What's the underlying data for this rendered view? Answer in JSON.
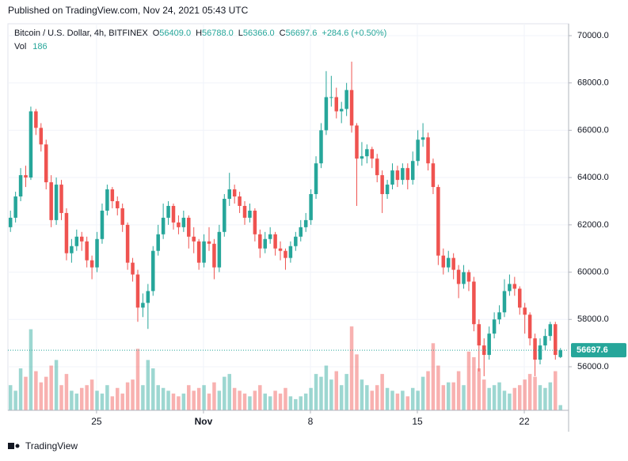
{
  "page": {
    "published": "Published on TradingView.com, Nov 24, 2021 05:43 UTC",
    "logo": "TradingView"
  },
  "chart_data": {
    "type": "candlestick",
    "legend": {
      "symbol": "Bitcoin / U.S. Dollar, 4h, BITFINEX",
      "open_label": "O",
      "open": "56409.0",
      "high_label": "H",
      "high": "56788.0",
      "low_label": "L",
      "low": "56366.0",
      "close_label": "C",
      "close": "56697.6",
      "change": "+284.6 (+0.50%)",
      "volume_label": "Vol"
    },
    "up_color": "#26a69a",
    "down_color": "#ef5350",
    "ylim": [
      54158,
      70502
    ],
    "yticks": [
      {
        "value": 56000,
        "label": "56000.0"
      },
      {
        "value": 58000,
        "label": "58000.0"
      },
      {
        "value": 60000,
        "label": "60000.0"
      },
      {
        "value": 62000,
        "label": "62000.0"
      },
      {
        "value": 64000,
        "label": "64000.0"
      },
      {
        "value": 66000,
        "label": "66000.0"
      },
      {
        "value": 68000,
        "label": "68000.0"
      },
      {
        "value": 70000,
        "label": "70000.0"
      }
    ],
    "xlim": [
      -0.5,
      109.6
    ],
    "xticks": [
      {
        "value": 16.9,
        "label": "25"
      },
      {
        "value": 37.9,
        "label": "Nov"
      },
      {
        "value": 58.9,
        "label": "8"
      },
      {
        "value": 79.9,
        "label": "15"
      },
      {
        "value": 100.9,
        "label": "22"
      }
    ],
    "grid": true,
    "last_price": 56697.6,
    "vol_ylim": [
      0,
      3400
    ],
    "ohlc": [
      [
        61900,
        62600,
        61700,
        62300
      ],
      [
        62300,
        63400,
        62100,
        63200
      ],
      [
        63200,
        64400,
        63000,
        64100
      ],
      [
        64100,
        64500,
        63600,
        64000
      ],
      [
        64000,
        67000,
        63900,
        66800
      ],
      [
        66800,
        66900,
        65800,
        66100
      ],
      [
        66100,
        66300,
        65100,
        65400
      ],
      [
        65400,
        65600,
        63500,
        63800
      ],
      [
        63800,
        64100,
        61900,
        62200
      ],
      [
        62200,
        64000,
        62000,
        63700
      ],
      [
        63700,
        63900,
        62200,
        62500
      ],
      [
        62500,
        62700,
        60500,
        60800
      ],
      [
        60800,
        61400,
        60400,
        61100
      ],
      [
        61100,
        61800,
        60900,
        61500
      ],
      [
        61500,
        61700,
        60900,
        61300
      ],
      [
        61300,
        61500,
        60200,
        60500
      ],
      [
        60500,
        60700,
        59700,
        60200
      ],
      [
        60200,
        61700,
        60000,
        61400
      ],
      [
        61400,
        62900,
        61200,
        62600
      ],
      [
        62600,
        63700,
        62400,
        63500
      ],
      [
        63500,
        63600,
        62700,
        63000
      ],
      [
        63000,
        63200,
        62400,
        62700
      ],
      [
        62700,
        62900,
        61700,
        62000
      ],
      [
        62000,
        62100,
        60100,
        60400
      ],
      [
        60400,
        60600,
        59600,
        59900
      ],
      [
        59900,
        60100,
        57900,
        58500
      ],
      [
        58500,
        59100,
        58100,
        58700
      ],
      [
        58700,
        59500,
        57600,
        59200
      ],
      [
        59200,
        61100,
        59000,
        60900
      ],
      [
        60900,
        62000,
        60700,
        61600
      ],
      [
        61600,
        62900,
        61400,
        62300
      ],
      [
        62300,
        63000,
        62000,
        62800
      ],
      [
        62800,
        62900,
        61800,
        62100
      ],
      [
        62100,
        62400,
        61600,
        61900
      ],
      [
        61900,
        62600,
        61700,
        62300
      ],
      [
        62300,
        62400,
        61000,
        61500
      ],
      [
        61500,
        61900,
        60800,
        61300
      ],
      [
        61300,
        61400,
        60100,
        60400
      ],
      [
        60400,
        61600,
        60200,
        61300
      ],
      [
        61300,
        61900,
        60900,
        61200
      ],
      [
        61200,
        61400,
        59700,
        60200
      ],
      [
        60200,
        62000,
        60000,
        61700
      ],
      [
        61700,
        63300,
        61500,
        63100
      ],
      [
        63100,
        64200,
        62800,
        63500
      ],
      [
        63500,
        63700,
        62900,
        63200
      ],
      [
        63200,
        63400,
        62500,
        62800
      ],
      [
        62800,
        63000,
        62000,
        62300
      ],
      [
        62300,
        62900,
        62100,
        62600
      ],
      [
        62600,
        62700,
        61300,
        61600
      ],
      [
        61600,
        61800,
        60600,
        61000
      ],
      [
        61000,
        61700,
        60800,
        61400
      ],
      [
        61400,
        61900,
        61200,
        61600
      ],
      [
        61600,
        61700,
        60700,
        61000
      ],
      [
        61000,
        61300,
        60500,
        60900
      ],
      [
        60900,
        61000,
        60100,
        60600
      ],
      [
        60600,
        61300,
        60400,
        61100
      ],
      [
        61100,
        61700,
        60900,
        61500
      ],
      [
        61500,
        62200,
        61300,
        61900
      ],
      [
        61900,
        62500,
        61700,
        62200
      ],
      [
        62200,
        63500,
        62000,
        63300
      ],
      [
        63300,
        64900,
        63100,
        64600
      ],
      [
        64600,
        66300,
        64400,
        66000
      ],
      [
        66000,
        68500,
        65800,
        67400
      ],
      [
        67400,
        68300,
        67000,
        67400
      ],
      [
        67400,
        67800,
        66500,
        66800
      ],
      [
        66800,
        67200,
        66300,
        66900
      ],
      [
        66900,
        68000,
        66600,
        67700
      ],
      [
        67700,
        68900,
        65900,
        66200
      ],
      [
        66200,
        66300,
        62800,
        64800
      ],
      [
        64800,
        65500,
        64500,
        64900
      ],
      [
        64900,
        65400,
        64600,
        65200
      ],
      [
        65200,
        65300,
        64400,
        64800
      ],
      [
        64800,
        65000,
        63800,
        64100
      ],
      [
        64100,
        64300,
        62500,
        63300
      ],
      [
        63300,
        63900,
        63100,
        63700
      ],
      [
        63700,
        64600,
        63500,
        64300
      ],
      [
        64300,
        64500,
        63600,
        63900
      ],
      [
        63900,
        64600,
        63700,
        64400
      ],
      [
        64400,
        64600,
        63500,
        63900
      ],
      [
        63900,
        65100,
        63700,
        64700
      ],
      [
        64700,
        66000,
        64500,
        65600
      ],
      [
        65600,
        66300,
        65300,
        65700
      ],
      [
        65700,
        65900,
        64300,
        64600
      ],
      [
        64600,
        64800,
        63300,
        63600
      ],
      [
        63600,
        63700,
        60300,
        60700
      ],
      [
        60700,
        61000,
        59900,
        60200
      ],
      [
        60200,
        60900,
        60000,
        60600
      ],
      [
        60600,
        60800,
        59700,
        60100
      ],
      [
        60100,
        60300,
        58900,
        59500
      ],
      [
        59500,
        60300,
        59300,
        60000
      ],
      [
        60000,
        60100,
        59200,
        59600
      ],
      [
        59600,
        59800,
        57500,
        57800
      ],
      [
        57800,
        58000,
        55800,
        56900
      ],
      [
        56900,
        57200,
        55600,
        56500
      ],
      [
        56500,
        57700,
        56300,
        57400
      ],
      [
        57400,
        58300,
        57200,
        58000
      ],
      [
        58000,
        58600,
        57800,
        58300
      ],
      [
        58300,
        59700,
        58100,
        59200
      ],
      [
        59200,
        59900,
        59000,
        59500
      ],
      [
        59500,
        59800,
        59000,
        59300
      ],
      [
        59300,
        59400,
        58200,
        58500
      ],
      [
        58500,
        58700,
        57400,
        58200
      ],
      [
        58200,
        58300,
        56900,
        57200
      ],
      [
        57200,
        57400,
        55600,
        56300
      ],
      [
        56300,
        57200,
        56100,
        56900
      ],
      [
        56900,
        57600,
        56700,
        57300
      ],
      [
        57300,
        57900,
        57100,
        57800
      ],
      [
        57800,
        57900,
        56300,
        56500
      ],
      [
        56409,
        56788,
        56366,
        56697.6
      ]
    ],
    "volume": [
      900,
      700,
      1500,
      1200,
      2900,
      1400,
      1000,
      1200,
      1600,
      1800,
      900,
      1300,
      700,
      600,
      800,
      900,
      1100,
      700,
      600,
      900,
      500,
      800,
      600,
      1000,
      1100,
      2200,
      900,
      1800,
      1500,
      900,
      800,
      700,
      600,
      500,
      600,
      900,
      700,
      800,
      900,
      600,
      1000,
      700,
      1200,
      1300,
      800,
      700,
      600,
      500,
      700,
      900,
      600,
      500,
      700,
      600,
      800,
      500,
      400,
      500,
      600,
      800,
      1300,
      1200,
      1600,
      1100,
      1400,
      900,
      1300,
      3000,
      2000,
      1100,
      900,
      700,
      900,
      1300,
      800,
      700,
      600,
      700,
      500,
      800,
      700,
      1200,
      1400,
      2400,
      1600,
      900,
      1000,
      1000,
      1400,
      900,
      2100,
      1900,
      1500,
      1100,
      800,
      900,
      1000,
      700,
      600,
      800,
      900,
      1100,
      1300,
      1200,
      900,
      800,
      1000,
      1400,
      186
    ]
  }
}
